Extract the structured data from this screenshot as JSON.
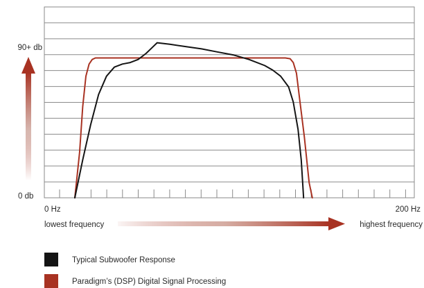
{
  "chart_data": {
    "type": "line",
    "title": "",
    "xlabel": "",
    "ylabel": "",
    "x_axis": {
      "start_label": "0 Hz",
      "end_label": "200 Hz",
      "start_caption": "lowest frequency",
      "end_caption": "highest frequency",
      "range": [
        0,
        200
      ],
      "unit": "Hz"
    },
    "y_axis": {
      "top_label": "90+ db",
      "bottom_label": "0 db",
      "range": [
        0,
        120
      ],
      "unit": "db"
    },
    "grid": true,
    "legend_position": "bottom-left",
    "series": [
      {
        "name": "Typical Subwoofer Response",
        "color": "#141414",
        "points": [
          [
            0,
            0
          ],
          [
            5,
            25
          ],
          [
            10,
            48
          ],
          [
            15,
            68
          ],
          [
            20,
            80
          ],
          [
            25,
            86
          ],
          [
            30,
            88
          ],
          [
            35,
            89
          ],
          [
            40,
            91
          ],
          [
            45,
            95
          ],
          [
            49,
            99
          ],
          [
            52,
            102
          ],
          [
            60,
            101
          ],
          [
            70,
            99.5
          ],
          [
            80,
            98
          ],
          [
            90,
            96
          ],
          [
            100,
            94
          ],
          [
            110,
            91
          ],
          [
            120,
            87
          ],
          [
            125,
            84
          ],
          [
            130,
            80
          ],
          [
            135,
            73
          ],
          [
            138,
            63
          ],
          [
            141,
            45
          ],
          [
            143,
            25
          ],
          [
            144.5,
            0
          ]
        ]
      },
      {
        "name": "Paradigm’s (DSP) Digital Signal Processing",
        "color": "#a83222",
        "points": [
          [
            0,
            0
          ],
          [
            3,
            30
          ],
          [
            5,
            60
          ],
          [
            7,
            80
          ],
          [
            9,
            88
          ],
          [
            11,
            91
          ],
          [
            13,
            92
          ],
          [
            20,
            92
          ],
          [
            60,
            92
          ],
          [
            100,
            92
          ],
          [
            133,
            92
          ],
          [
            136,
            91.5
          ],
          [
            138,
            89
          ],
          [
            140,
            82
          ],
          [
            142,
            65
          ],
          [
            145,
            40
          ],
          [
            148,
            10
          ],
          [
            150,
            0
          ]
        ]
      }
    ]
  },
  "legend": [
    {
      "label": "Typical Subwoofer Response",
      "color": "#141414"
    },
    {
      "label": "Paradigm’s (DSP) Digital Signal Processing",
      "color": "#a83222"
    }
  ]
}
